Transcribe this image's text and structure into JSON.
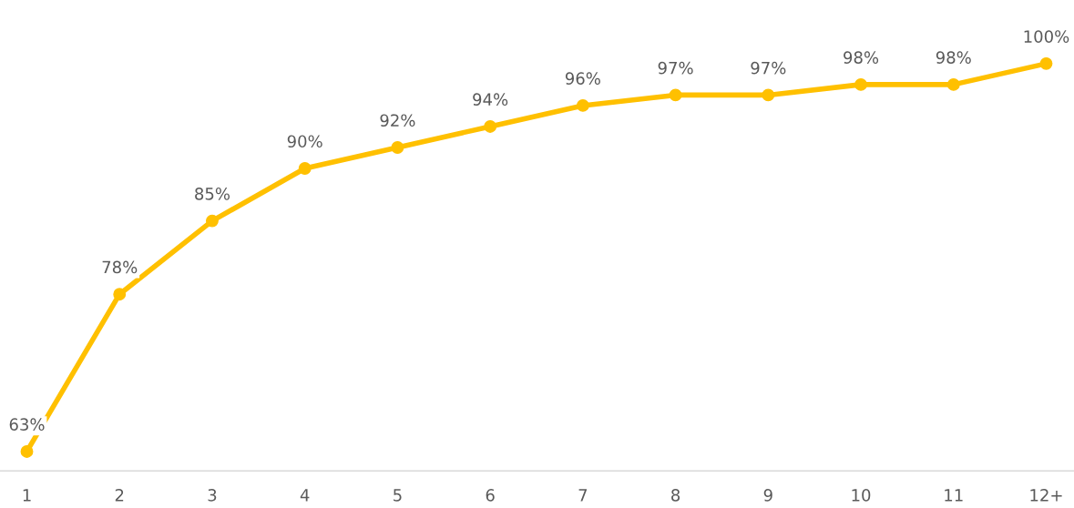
{
  "chart_data": {
    "type": "line",
    "categories": [
      "1",
      "2",
      "3",
      "4",
      "5",
      "6",
      "7",
      "8",
      "9",
      "10",
      "11",
      "12+"
    ],
    "series": [
      {
        "color": "#ffc000",
        "values": [
          63,
          78,
          85,
          90,
          92,
          94,
          96,
          97,
          97,
          98,
          98,
          100
        ],
        "value_labels": [
          "63%",
          "78%",
          "85%",
          "90%",
          "92%",
          "94%",
          "96%",
          "97%",
          "97%",
          "98%",
          "98%",
          "100%"
        ]
      }
    ],
    "tick_labels": "x",
    "grid": false,
    "marker": "circle",
    "line_style": "solid"
  }
}
